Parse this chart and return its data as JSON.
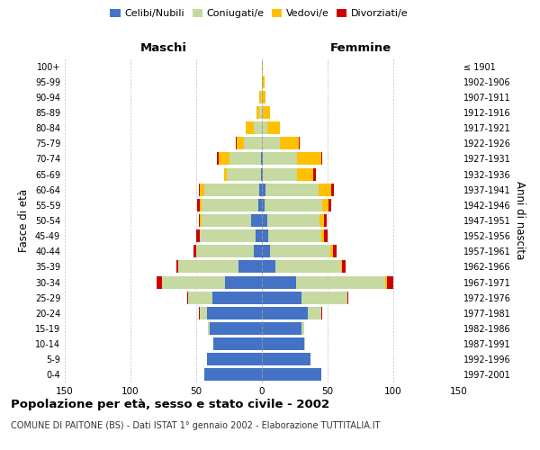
{
  "age_groups": [
    "0-4",
    "5-9",
    "10-14",
    "15-19",
    "20-24",
    "25-29",
    "30-34",
    "35-39",
    "40-44",
    "45-49",
    "50-54",
    "55-59",
    "60-64",
    "65-69",
    "70-74",
    "75-79",
    "80-84",
    "85-89",
    "90-94",
    "95-99",
    "100+"
  ],
  "birth_years": [
    "1997-2001",
    "1992-1996",
    "1987-1991",
    "1982-1986",
    "1977-1981",
    "1972-1976",
    "1967-1971",
    "1962-1966",
    "1957-1961",
    "1952-1956",
    "1947-1951",
    "1942-1946",
    "1937-1941",
    "1932-1936",
    "1927-1931",
    "1922-1926",
    "1917-1921",
    "1912-1916",
    "1907-1911",
    "1902-1906",
    "≤ 1901"
  ],
  "males": {
    "celibi": [
      44,
      42,
      37,
      40,
      42,
      38,
      28,
      18,
      6,
      5,
      8,
      3,
      2,
      1,
      1,
      0,
      0,
      0,
      0,
      0,
      0
    ],
    "coniugati": [
      0,
      0,
      0,
      1,
      5,
      18,
      48,
      46,
      44,
      42,
      38,
      43,
      42,
      26,
      24,
      14,
      6,
      2,
      1,
      0,
      0
    ],
    "vedovi": [
      0,
      0,
      0,
      0,
      0,
      0,
      0,
      0,
      0,
      0,
      1,
      1,
      3,
      2,
      8,
      5,
      6,
      2,
      1,
      0,
      0
    ],
    "divorziati": [
      0,
      0,
      0,
      0,
      1,
      1,
      4,
      1,
      2,
      3,
      1,
      2,
      1,
      0,
      1,
      1,
      0,
      0,
      0,
      0,
      0
    ]
  },
  "females": {
    "nubili": [
      45,
      37,
      32,
      30,
      35,
      30,
      26,
      10,
      6,
      5,
      4,
      2,
      3,
      1,
      1,
      0,
      0,
      0,
      0,
      0,
      0
    ],
    "coniugate": [
      0,
      0,
      1,
      2,
      10,
      35,
      68,
      50,
      46,
      40,
      40,
      44,
      40,
      26,
      26,
      14,
      4,
      1,
      0,
      0,
      0
    ],
    "vedove": [
      0,
      0,
      0,
      0,
      0,
      0,
      1,
      1,
      2,
      2,
      3,
      5,
      10,
      12,
      18,
      14,
      10,
      5,
      3,
      2,
      1
    ],
    "divorziate": [
      0,
      0,
      0,
      0,
      1,
      1,
      5,
      3,
      3,
      3,
      2,
      2,
      2,
      2,
      1,
      1,
      0,
      0,
      0,
      0,
      0
    ]
  },
  "colors": {
    "celibi": "#4472c4",
    "coniugati": "#c5d9a0",
    "vedovi": "#ffc000",
    "divorziati": "#cc0000"
  },
  "xlim": 150,
  "title": "Popolazione per età, sesso e stato civile - 2002",
  "subtitle": "COMUNE DI PAITONE (BS) - Dati ISTAT 1° gennaio 2002 - Elaborazione TUTTITALIA.IT",
  "ylabel_left": "Fasce di età",
  "ylabel_right": "Anni di nascita",
  "xlabel_maschi": "Maschi",
  "xlabel_femmine": "Femmine",
  "bg_color": "#ffffff",
  "grid_color": "#bbbbbb"
}
